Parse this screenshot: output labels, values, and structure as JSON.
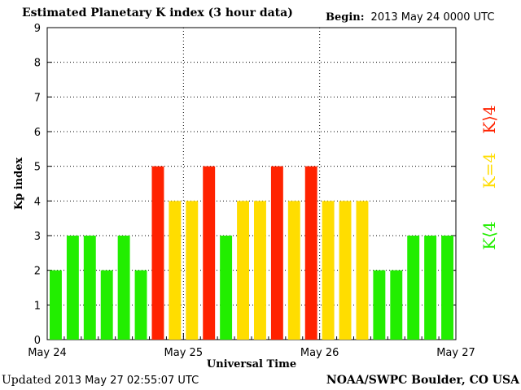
{
  "header": {
    "title": "Estimated Planetary K index (3 hour data)",
    "begin_label": "Begin:",
    "begin_value": "2013 May 24 0000 UTC"
  },
  "footer": {
    "updated_label": "Updated",
    "updated_value": "2013 May 27 02:55:07 UTC",
    "source": "NOAA/SWPC Boulder, CO USA"
  },
  "colors": {
    "low": "#22ee00",
    "equal": "#ffdd00",
    "high": "#ff2200"
  },
  "chart_data": {
    "type": "bar",
    "ylabel": "Kp index",
    "xlabel": "Universal Time",
    "ylim": [
      0,
      9
    ],
    "yticks": [
      0,
      1,
      2,
      3,
      4,
      5,
      6,
      7,
      8,
      9
    ],
    "xtick_labels": [
      "May 24",
      "May 25",
      "May 26",
      "May 27"
    ],
    "grid": true,
    "legend": [
      {
        "label": "K⟨4",
        "color_key": "low"
      },
      {
        "label": "K=4",
        "color_key": "equal"
      },
      {
        "label": "K⟩4",
        "color_key": "high"
      }
    ],
    "legend_position": "right",
    "values": [
      2,
      3,
      3,
      2,
      3,
      2,
      5,
      4,
      4,
      5,
      3,
      4,
      4,
      5,
      4,
      5,
      4,
      4,
      4,
      2,
      2,
      3,
      3,
      3
    ]
  }
}
